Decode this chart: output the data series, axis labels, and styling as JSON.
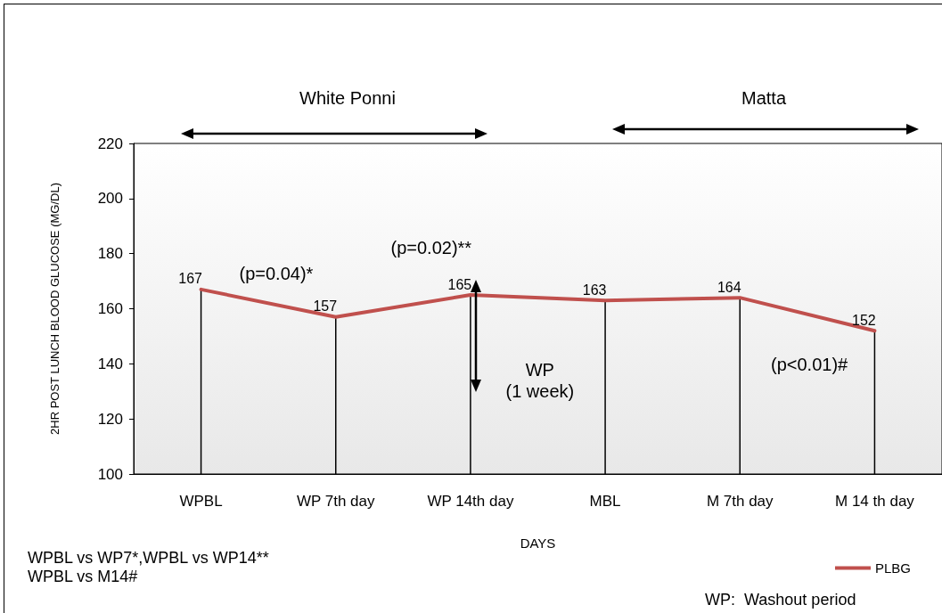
{
  "chart_data": {
    "type": "line",
    "xlabel": "DAYS",
    "ylabel": "2HR POST LUNCH BLOOD GLUCOSE (MG/DL)",
    "categories": [
      "WPBL",
      "WP 7th day",
      "WP 14th day",
      "MBL",
      "M 7th day",
      "M 14 th day"
    ],
    "series": [
      {
        "type": "bar",
        "color": "#000000",
        "values": [
          167,
          157,
          165,
          163,
          164,
          152
        ]
      },
      {
        "name": "PLBG",
        "color": "#c0504d",
        "values": [
          167,
          157,
          165,
          163,
          164,
          152
        ],
        "value_labels": [
          "167",
          "157",
          "165",
          "163",
          "164",
          "152"
        ]
      }
    ],
    "ylim": [
      100,
      220
    ],
    "yticks": [
      100,
      120,
      140,
      160,
      180,
      200,
      220
    ],
    "grid": false,
    "legend": "bottom right",
    "marker": "none",
    "line_style": "solid",
    "annotations": [
      "White Ponni",
      "Matta",
      "(p=0.04)*",
      "(p=0.02)**",
      "WP\n(1 week)",
      "(p<0.01)#",
      "WPBL vs WP7*,WPBL vs WP14**\nWPBL vs M14#",
      "WP:  Washout period"
    ]
  }
}
